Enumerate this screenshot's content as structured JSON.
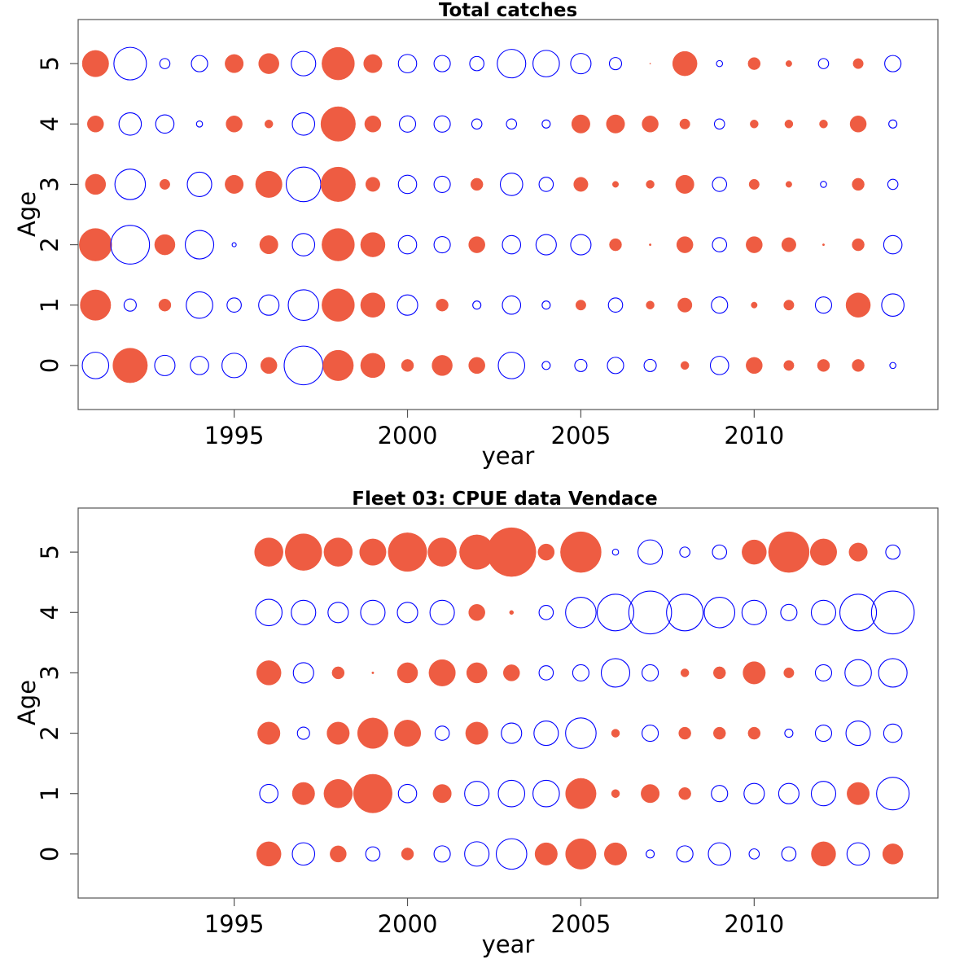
{
  "colors": {
    "positive": "#EE5C42",
    "negative": "#0000FF"
  },
  "chart_data": [
    {
      "type": "scatter",
      "subtype": "bubble",
      "title": "Total catches",
      "xlabel": "year",
      "ylabel": "Age",
      "xlim": [
        1990.5,
        2015.3
      ],
      "ylim": [
        -0.73,
        5.73
      ],
      "xticks": [
        1995,
        2000,
        2005,
        2010
      ],
      "yticks": [
        0,
        1,
        2,
        3,
        4,
        5
      ],
      "grid": false,
      "legend": "none",
      "note_values": "signed bubble values: positive = filled red, negative = open blue; magnitude proportional to circle radius",
      "years": [
        1991,
        1992,
        1993,
        1994,
        1995,
        1996,
        1997,
        1998,
        1999,
        2000,
        2001,
        2002,
        2003,
        2004,
        2005,
        2006,
        2007,
        2008,
        2009,
        2010,
        2011,
        2012,
        2013,
        2014
      ],
      "ages": [
        0,
        1,
        2,
        3,
        4,
        5
      ],
      "values": [
        [
          -13,
          17,
          -10,
          -9,
          -12,
          8,
          -19,
          15,
          12,
          6,
          10,
          8,
          -13,
          -4,
          -6,
          -8,
          -6,
          4,
          -9,
          8,
          5,
          6,
          6,
          -3
        ],
        [
          15,
          -6,
          6,
          -13,
          -7,
          -10,
          -15,
          16,
          12,
          -10,
          6,
          -4,
          -9,
          -4,
          5,
          -7,
          4,
          7,
          -8,
          3,
          5,
          -8,
          12,
          -11
        ],
        [
          16,
          -19,
          10,
          -14,
          -2,
          9,
          -11,
          16,
          12,
          -9,
          -8,
          8,
          -9,
          -10,
          -10,
          6,
          1,
          8,
          -7,
          8,
          7,
          1,
          6,
          -9
        ],
        [
          10,
          -15,
          5,
          -12,
          9,
          13,
          -17,
          17,
          7,
          -9,
          -8,
          6,
          -11,
          -7,
          7,
          3,
          4,
          9,
          -7,
          5,
          3,
          -3,
          6,
          -5
        ],
        [
          8,
          -11,
          -9,
          -3,
          8,
          4,
          -11,
          17,
          8,
          -8,
          -8,
          -5,
          -5,
          -4,
          9,
          9,
          8,
          5,
          -5,
          4,
          4,
          4,
          8,
          -4
        ],
        [
          13,
          -16,
          -5,
          -8,
          9,
          10,
          -12,
          16,
          9,
          -9,
          -8,
          -7,
          -14,
          -13,
          -10,
          -6,
          0.5,
          12,
          -3,
          6,
          3,
          -5,
          5,
          -8
        ]
      ]
    },
    {
      "type": "scatter",
      "subtype": "bubble",
      "title": "Fleet 03:  CPUE data Vendace",
      "xlabel": "year",
      "ylabel": "Age",
      "xlim": [
        1990.5,
        2015.3
      ],
      "ylim": [
        -0.73,
        5.73
      ],
      "xticks": [
        1995,
        2000,
        2005,
        2010
      ],
      "yticks": [
        0,
        1,
        2,
        3,
        4,
        5
      ],
      "grid": false,
      "legend": "none",
      "note_values": "signed bubble values: positive = filled red, negative = open blue; magnitude proportional to circle radius",
      "years": [
        1996,
        1997,
        1998,
        1999,
        2000,
        2001,
        2002,
        2003,
        2004,
        2005,
        2006,
        2007,
        2008,
        2009,
        2010,
        2011,
        2012,
        2013,
        2014
      ],
      "ages": [
        0,
        1,
        2,
        3,
        4,
        5
      ],
      "values": [
        [
          12,
          -11,
          8,
          -7,
          6,
          -8,
          -12,
          -15,
          11,
          15,
          11,
          -4,
          -8,
          -11,
          -5,
          -7,
          12,
          -11,
          10
        ],
        [
          -9,
          11,
          14,
          19,
          -9,
          9,
          -12,
          -13,
          -13,
          15,
          4,
          9,
          6,
          -8,
          -10,
          -10,
          -12,
          11,
          -16
        ],
        [
          11,
          -6,
          11,
          15,
          13,
          -7,
          11,
          -10,
          -12,
          -15,
          4,
          -8,
          6,
          6,
          6,
          -4,
          -8,
          -12,
          -9
        ],
        [
          12,
          -10,
          6,
          1,
          10,
          13,
          10,
          8,
          -7,
          -8,
          -14,
          -8,
          4,
          6,
          11,
          5,
          -8,
          -13,
          -14
        ],
        [
          -13,
          -12,
          -10,
          -12,
          -10,
          -12,
          8,
          2,
          -7,
          -15,
          -18,
          -21,
          -18,
          -15,
          -12,
          -8,
          -12,
          -18,
          -21
        ],
        [
          14,
          18,
          14,
          13,
          19,
          14,
          17,
          24,
          8,
          20,
          -3,
          -12,
          -5,
          -7,
          12,
          20,
          13,
          9,
          -7
        ]
      ]
    }
  ]
}
